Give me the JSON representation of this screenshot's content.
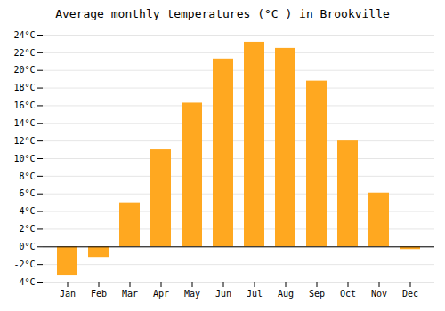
{
  "chart_data": {
    "type": "bar",
    "title": "Average monthly temperatures (°C ) in Brookville",
    "categories": [
      "Jan",
      "Feb",
      "Mar",
      "Apr",
      "May",
      "Jun",
      "Jul",
      "Aug",
      "Sep",
      "Oct",
      "Nov",
      "Dec"
    ],
    "values": [
      -3.3,
      -1.2,
      5.0,
      11.0,
      16.3,
      21.3,
      23.2,
      22.5,
      18.8,
      12.0,
      6.1,
      -0.3
    ],
    "color": "#FFA820",
    "ylim": [
      -4,
      24
    ],
    "yticks": [
      {
        "value": -4,
        "label": "-4°C"
      },
      {
        "value": -2,
        "label": "-2°C"
      },
      {
        "value": 0,
        "label": "0°C"
      },
      {
        "value": 2,
        "label": "2°C"
      },
      {
        "value": 4,
        "label": "4°C"
      },
      {
        "value": 6,
        "label": "6°C"
      },
      {
        "value": 8,
        "label": "8°C"
      },
      {
        "value": 10,
        "label": "10°C"
      },
      {
        "value": 12,
        "label": "12°C"
      },
      {
        "value": 14,
        "label": "14°C"
      },
      {
        "value": 16,
        "label": "16°C"
      },
      {
        "value": 18,
        "label": "18°C"
      },
      {
        "value": 20,
        "label": "20°C"
      },
      {
        "value": 22,
        "label": "22°C"
      },
      {
        "value": 24,
        "label": "24°C"
      }
    ],
    "grid": true
  }
}
